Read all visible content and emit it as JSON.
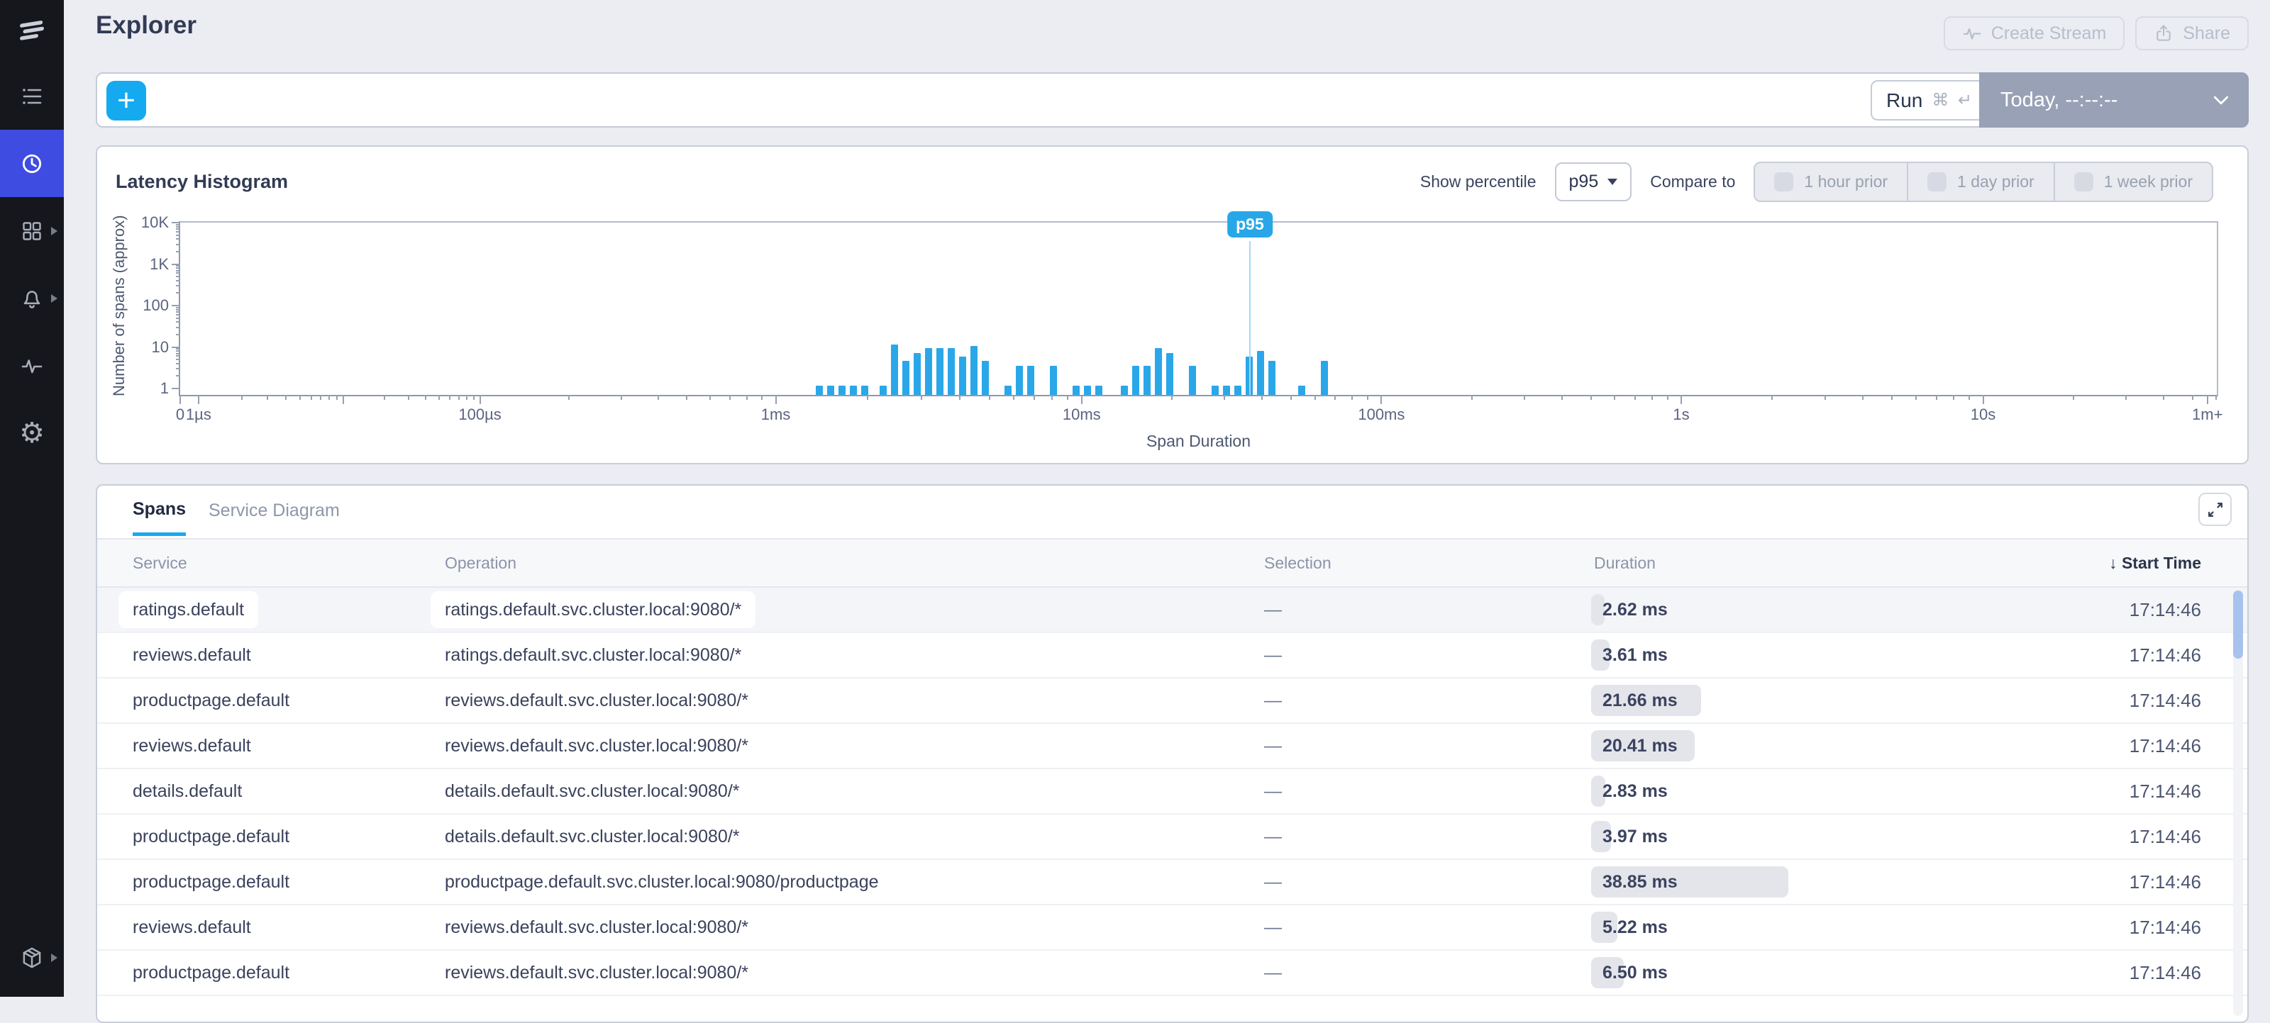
{
  "header": {
    "title": "Explorer",
    "create_stream_label": "Create Stream",
    "share_label": "Share"
  },
  "query": {
    "add_label": "+",
    "run_label": "Run",
    "run_shortcut": "⌘ ↵",
    "time_range": "Today, --:--:--"
  },
  "histogram": {
    "title": "Latency Histogram",
    "show_percentile_label": "Show percentile",
    "percentile_value": "p95",
    "compare_label": "Compare to",
    "compare_options": [
      "1 hour prior",
      "1 day prior",
      "1 week prior"
    ]
  },
  "chart_data": {
    "type": "bar",
    "title": "Latency Histogram",
    "xlabel": "Span Duration",
    "ylabel": "Number of spans (approx)",
    "x_scale": "log",
    "y_scale": "log",
    "ylim": [
      1,
      10000
    ],
    "grid": false,
    "y_ticks": [
      {
        "label": "1",
        "d": 0
      },
      {
        "label": "10",
        "d": 1
      },
      {
        "label": "100",
        "d": 2
      },
      {
        "label": "1K",
        "d": 3
      },
      {
        "label": "10K",
        "d": 4
      }
    ],
    "x_ticks": [
      {
        "label": "0",
        "f": 0.0
      },
      {
        "label": "1µs",
        "f": 0.009
      },
      {
        "label": "",
        "f": 0.08
      },
      {
        "label": "100µs",
        "f": 0.147
      },
      {
        "label": "1ms",
        "f": 0.292
      },
      {
        "label": "10ms",
        "f": 0.442
      },
      {
        "label": "100ms",
        "f": 0.589
      },
      {
        "label": "1s",
        "f": 0.736
      },
      {
        "label": "10s",
        "f": 0.884
      },
      {
        "label": "1m+",
        "f": 0.994
      }
    ],
    "x_decade_fracs": [
      0.009,
      0.08,
      0.147,
      0.292,
      0.442,
      0.589,
      0.736,
      0.884,
      1.031
    ],
    "percentile_marker": {
      "label": "p95",
      "f": 0.5245,
      "duration_ms": 36
    },
    "bars": [
      {
        "f": 0.3134,
        "ms": 1.39,
        "count": 1
      },
      {
        "f": 0.319,
        "ms": 1.51,
        "count": 1
      },
      {
        "f": 0.3245,
        "ms": 1.64,
        "count": 1
      },
      {
        "f": 0.3301,
        "ms": 1.79,
        "count": 1
      },
      {
        "f": 0.3357,
        "ms": 1.95,
        "count": 1
      },
      {
        "f": 0.3447,
        "ms": 2.24,
        "count": 1
      },
      {
        "f": 0.3503,
        "ms": 2.44,
        "count": 10
      },
      {
        "f": 0.3558,
        "ms": 2.67,
        "count": 4
      },
      {
        "f": 0.3614,
        "ms": 2.9,
        "count": 6
      },
      {
        "f": 0.367,
        "ms": 3.16,
        "count": 8
      },
      {
        "f": 0.3725,
        "ms": 3.44,
        "count": 8
      },
      {
        "f": 0.3781,
        "ms": 3.75,
        "count": 8
      },
      {
        "f": 0.3837,
        "ms": 4.09,
        "count": 5
      },
      {
        "f": 0.3892,
        "ms": 4.46,
        "count": 9
      },
      {
        "f": 0.3948,
        "ms": 4.85,
        "count": 4
      },
      {
        "f": 0.4059,
        "ms": 5.75,
        "count": 1
      },
      {
        "f": 0.4115,
        "ms": 6.28,
        "count": 3
      },
      {
        "f": 0.417,
        "ms": 6.84,
        "count": 3
      },
      {
        "f": 0.4282,
        "ms": 8.11,
        "count": 3
      },
      {
        "f": 0.4393,
        "ms": 9.64,
        "count": 1
      },
      {
        "f": 0.4449,
        "ms": 10.5,
        "count": 1
      },
      {
        "f": 0.4504,
        "ms": 11.4,
        "count": 1
      },
      {
        "f": 0.463,
        "ms": 13.9,
        "count": 1
      },
      {
        "f": 0.4685,
        "ms": 15.2,
        "count": 3
      },
      {
        "f": 0.4741,
        "ms": 16.6,
        "count": 3
      },
      {
        "f": 0.4797,
        "ms": 18.1,
        "count": 8
      },
      {
        "f": 0.4852,
        "ms": 19.7,
        "count": 6
      },
      {
        "f": 0.4964,
        "ms": 23.5,
        "count": 3
      },
      {
        "f": 0.5075,
        "ms": 27.9,
        "count": 1
      },
      {
        "f": 0.513,
        "ms": 30.4,
        "count": 1
      },
      {
        "f": 0.5186,
        "ms": 33.2,
        "count": 1
      },
      {
        "f": 0.5242,
        "ms": 36.2,
        "count": 5
      },
      {
        "f": 0.5297,
        "ms": 39.5,
        "count": 7
      },
      {
        "f": 0.5353,
        "ms": 43.1,
        "count": 4
      },
      {
        "f": 0.5499,
        "ms": 54.1,
        "count": 1
      },
      {
        "f": 0.561,
        "ms": 64.4,
        "count": 4
      }
    ]
  },
  "spans": {
    "tabs": [
      "Spans",
      "Service Diagram"
    ],
    "active_tab": "Spans",
    "columns": [
      "Service",
      "Operation",
      "Selection",
      "Duration",
      "Start Time"
    ],
    "sort_column": "Start Time",
    "sort_direction": "desc",
    "rows": [
      {
        "service": "ratings.default",
        "operation": "ratings.default.svc.cluster.local:9080/*",
        "selection": "—",
        "duration": "2.62 ms",
        "duration_ms": 2.62,
        "start_time": "17:14:46",
        "selected": true
      },
      {
        "service": "reviews.default",
        "operation": "ratings.default.svc.cluster.local:9080/*",
        "selection": "—",
        "duration": "3.61 ms",
        "duration_ms": 3.61,
        "start_time": "17:14:46",
        "selected": false
      },
      {
        "service": "productpage.default",
        "operation": "reviews.default.svc.cluster.local:9080/*",
        "selection": "—",
        "duration": "21.66 ms",
        "duration_ms": 21.66,
        "start_time": "17:14:46",
        "selected": false
      },
      {
        "service": "reviews.default",
        "operation": "reviews.default.svc.cluster.local:9080/*",
        "selection": "—",
        "duration": "20.41 ms",
        "duration_ms": 20.41,
        "start_time": "17:14:46",
        "selected": false
      },
      {
        "service": "details.default",
        "operation": "details.default.svc.cluster.local:9080/*",
        "selection": "—",
        "duration": "2.83 ms",
        "duration_ms": 2.83,
        "start_time": "17:14:46",
        "selected": false
      },
      {
        "service": "productpage.default",
        "operation": "details.default.svc.cluster.local:9080/*",
        "selection": "—",
        "duration": "3.97 ms",
        "duration_ms": 3.97,
        "start_time": "17:14:46",
        "selected": false
      },
      {
        "service": "productpage.default",
        "operation": "productpage.default.svc.cluster.local:9080/productpage",
        "selection": "—",
        "duration": "38.85 ms",
        "duration_ms": 38.85,
        "start_time": "17:14:46",
        "selected": false
      },
      {
        "service": "reviews.default",
        "operation": "reviews.default.svc.cluster.local:9080/*",
        "selection": "—",
        "duration": "5.22 ms",
        "duration_ms": 5.22,
        "start_time": "17:14:46",
        "selected": false
      },
      {
        "service": "productpage.default",
        "operation": "reviews.default.svc.cluster.local:9080/*",
        "selection": "—",
        "duration": "6.50 ms",
        "duration_ms": 6.5,
        "start_time": "17:14:46",
        "selected": false
      }
    ]
  },
  "colors": {
    "accent_blue": "#15aaf0",
    "bar_blue": "#2aa7e9",
    "active_nav": "#3e4ce2",
    "sidebar_bg": "#15171c",
    "page_bg": "#ebedf3",
    "time_range_bg": "#98a1b5",
    "duration_chip": "#e3e5ea",
    "scroll_thumb": "#a8c2ee"
  }
}
